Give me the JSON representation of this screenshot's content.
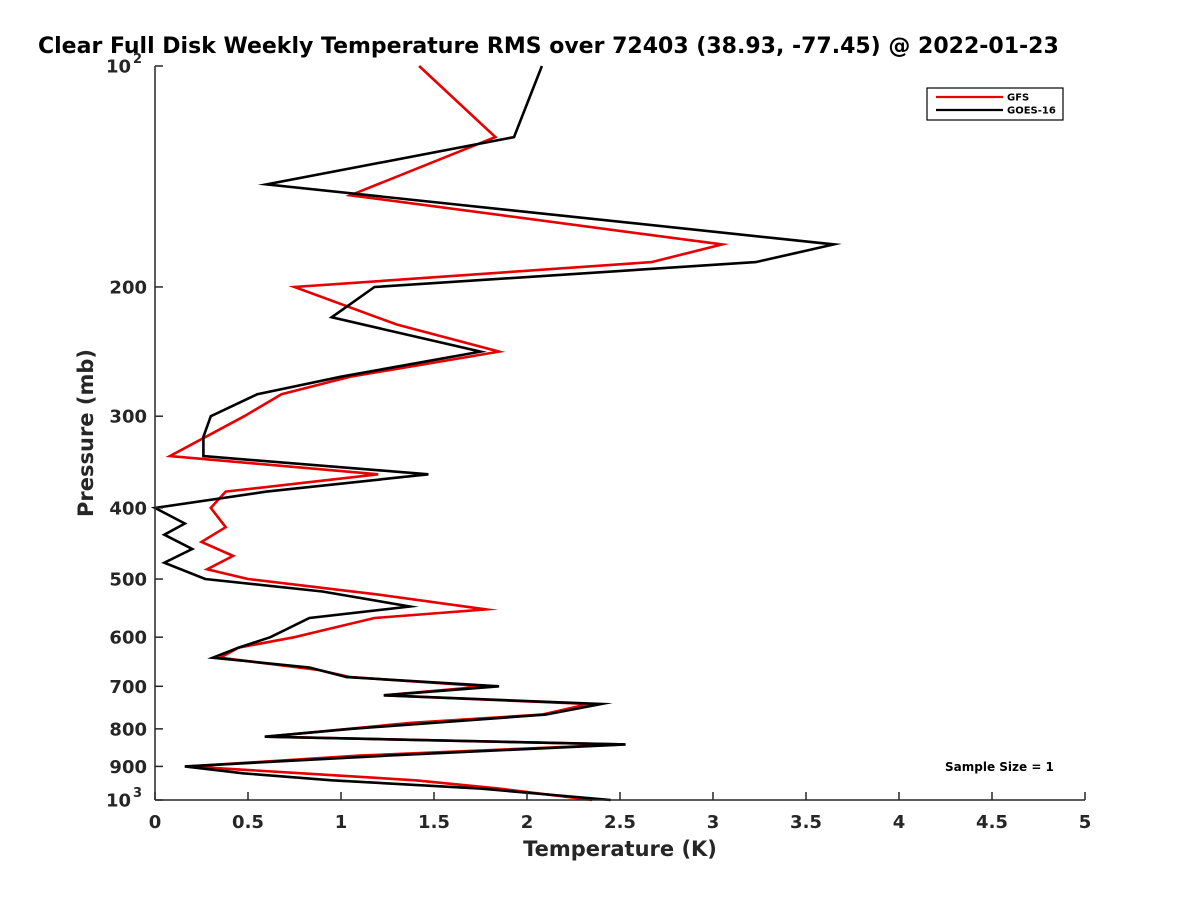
{
  "chart_data": {
    "type": "line",
    "title": "Clear Full Disk Weekly Temperature RMS over 72403 (38.93, -77.45) @ 2022-01-23",
    "xlabel": "Temperature (K)",
    "ylabel": "Pressure (mb)",
    "xlim": [
      0,
      5
    ],
    "ylim": [
      1000,
      100
    ],
    "yscale": "log",
    "y_reversed": true,
    "grid": false,
    "legend_position": "top-right",
    "x_ticks": [
      {
        "value": 0,
        "label": "0"
      },
      {
        "value": 0.5,
        "label": "0.5"
      },
      {
        "value": 1,
        "label": "1"
      },
      {
        "value": 1.5,
        "label": "1.5"
      },
      {
        "value": 2,
        "label": "2"
      },
      {
        "value": 2.5,
        "label": "2.5"
      },
      {
        "value": 3,
        "label": "3"
      },
      {
        "value": 3.5,
        "label": "3.5"
      },
      {
        "value": 4,
        "label": "4"
      },
      {
        "value": 4.5,
        "label": "4.5"
      },
      {
        "value": 5,
        "label": "5"
      }
    ],
    "y_ticks": [
      {
        "value": 100,
        "base": "10",
        "exp": "2"
      },
      {
        "value": 200,
        "label": "200"
      },
      {
        "value": 300,
        "label": "300"
      },
      {
        "value": 400,
        "label": "400"
      },
      {
        "value": 500,
        "label": "500"
      },
      {
        "value": 600,
        "label": "600"
      },
      {
        "value": 700,
        "label": "700"
      },
      {
        "value": 800,
        "label": "800"
      },
      {
        "value": 900,
        "label": "900"
      },
      {
        "value": 1000,
        "base": "10",
        "exp": "3"
      }
    ],
    "annotation": "Sample Size = 1",
    "series": [
      {
        "name": "GFS",
        "color": "#e60000",
        "points": [
          [
            1.42,
            100
          ],
          [
            1.83,
            125
          ],
          [
            1.05,
            150
          ],
          [
            3.05,
            175
          ],
          [
            2.67,
            185
          ],
          [
            0.75,
            200
          ],
          [
            1.3,
            225
          ],
          [
            1.85,
            245
          ],
          [
            1.05,
            265
          ],
          [
            0.68,
            280
          ],
          [
            0.48,
            300
          ],
          [
            0.08,
            340
          ],
          [
            1.2,
            360
          ],
          [
            0.38,
            380
          ],
          [
            0.3,
            400
          ],
          [
            0.38,
            425
          ],
          [
            0.25,
            445
          ],
          [
            0.42,
            465
          ],
          [
            0.28,
            485
          ],
          [
            0.5,
            500
          ],
          [
            1.2,
            525
          ],
          [
            1.78,
            550
          ],
          [
            1.18,
            565
          ],
          [
            0.93,
            585
          ],
          [
            0.75,
            600
          ],
          [
            0.45,
            620
          ],
          [
            0.35,
            640
          ],
          [
            0.88,
            665
          ],
          [
            1.05,
            680
          ],
          [
            1.78,
            700
          ],
          [
            1.23,
            720
          ],
          [
            2.33,
            740
          ],
          [
            2.08,
            765
          ],
          [
            1.38,
            785
          ],
          [
            0.6,
            820
          ],
          [
            2.52,
            840
          ],
          [
            1.1,
            870
          ],
          [
            0.18,
            900
          ],
          [
            0.8,
            920
          ],
          [
            1.4,
            940
          ],
          [
            1.85,
            965
          ],
          [
            2.35,
            1000
          ]
        ]
      },
      {
        "name": "GOES-16",
        "color": "#000000",
        "points": [
          [
            2.08,
            100
          ],
          [
            1.93,
            125
          ],
          [
            0.6,
            145
          ],
          [
            3.65,
            175
          ],
          [
            3.23,
            185
          ],
          [
            1.18,
            200
          ],
          [
            0.95,
            220
          ],
          [
            1.75,
            245
          ],
          [
            1.0,
            265
          ],
          [
            0.55,
            280
          ],
          [
            0.3,
            300
          ],
          [
            0.26,
            320
          ],
          [
            0.26,
            340
          ],
          [
            1.47,
            360
          ],
          [
            0.6,
            380
          ],
          [
            0.0,
            400
          ],
          [
            0.16,
            420
          ],
          [
            0.05,
            435
          ],
          [
            0.2,
            455
          ],
          [
            0.05,
            475
          ],
          [
            0.27,
            500
          ],
          [
            0.9,
            520
          ],
          [
            1.37,
            545
          ],
          [
            0.83,
            565
          ],
          [
            0.62,
            600
          ],
          [
            0.45,
            620
          ],
          [
            0.31,
            640
          ],
          [
            0.83,
            660
          ],
          [
            1.03,
            680
          ],
          [
            1.85,
            700
          ],
          [
            1.23,
            720
          ],
          [
            2.4,
            740
          ],
          [
            2.1,
            765
          ],
          [
            1.05,
            800
          ],
          [
            0.59,
            820
          ],
          [
            2.53,
            840
          ],
          [
            1.25,
            870
          ],
          [
            0.16,
            900
          ],
          [
            0.48,
            920
          ],
          [
            0.95,
            940
          ],
          [
            1.75,
            965
          ],
          [
            2.45,
            1000
          ]
        ]
      }
    ]
  }
}
